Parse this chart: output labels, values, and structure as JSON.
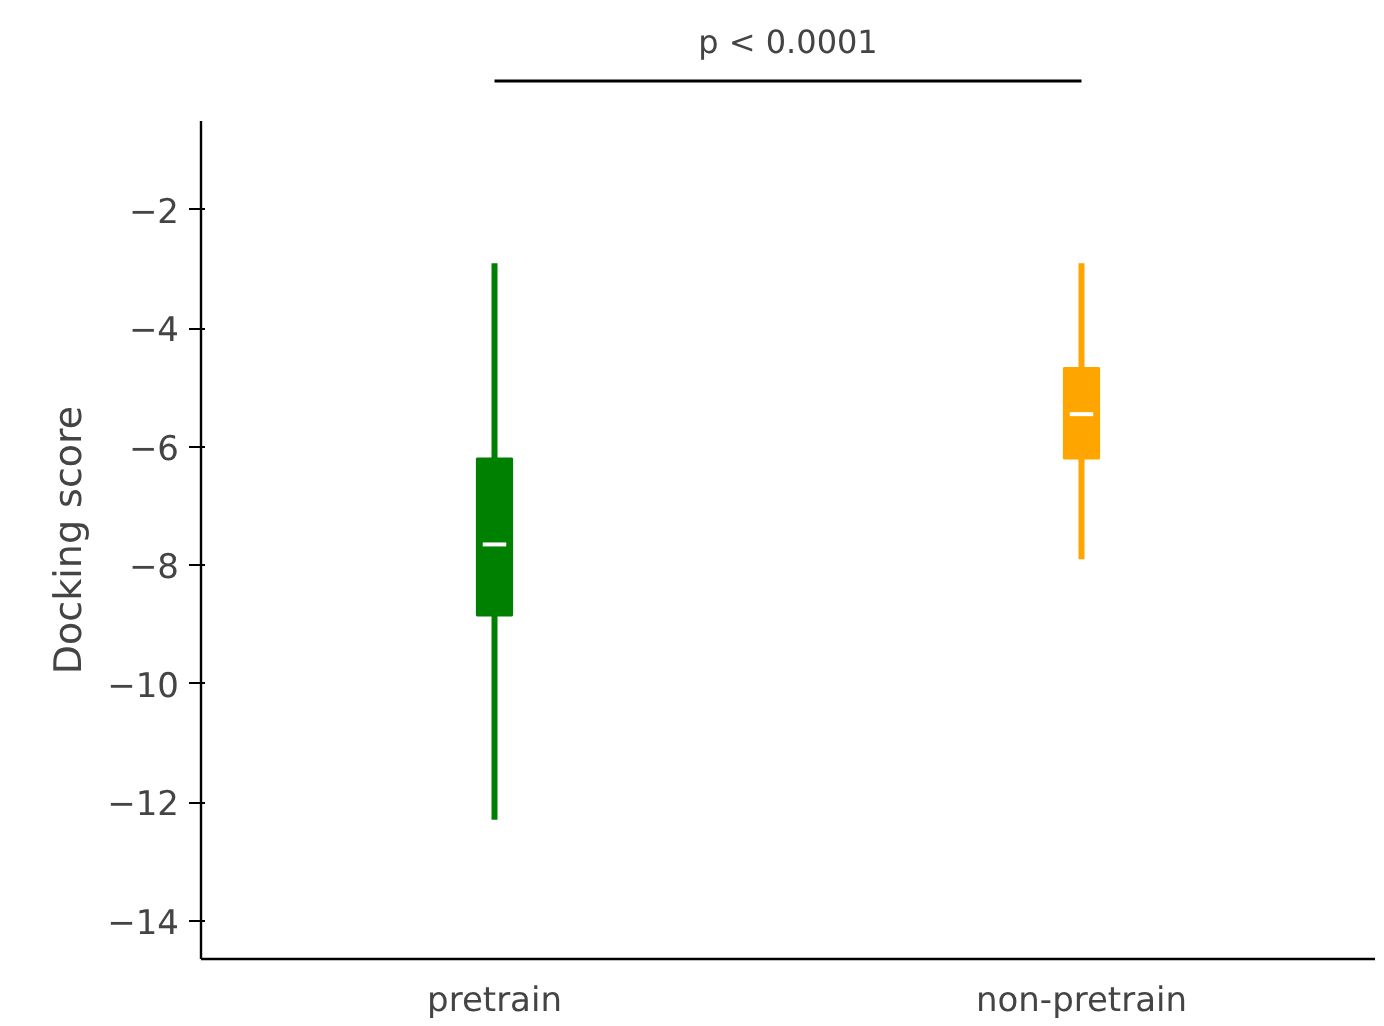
{
  "chart_data": {
    "type": "box",
    "ylabel": "Docking score",
    "categories": [
      "pretrain",
      "non-pretrain"
    ],
    "colors": [
      "#008000",
      "#ffa500"
    ],
    "boxes": [
      {
        "low": -12.3,
        "q1": -8.85,
        "median": -7.65,
        "q3": -6.2,
        "high": -2.9
      },
      {
        "low": -7.9,
        "q1": -6.2,
        "median": -5.45,
        "q3": -4.67,
        "high": -2.9
      }
    ],
    "ylim": [
      -14.65,
      -0.5
    ],
    "yticks": [
      -14,
      -12,
      -10,
      -8,
      -6,
      -4,
      -2
    ],
    "annotations": [
      "p < 0.0001"
    ],
    "grid": false
  }
}
